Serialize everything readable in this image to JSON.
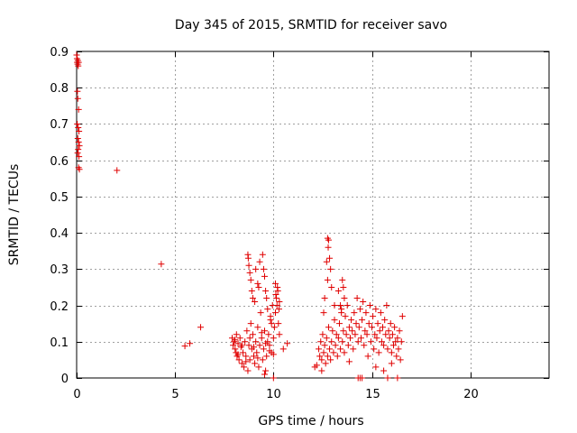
{
  "chart_data": {
    "type": "scatter",
    "title": "Day 345 of 2015, SRMTID for receiver savo",
    "xlabel": "GPS time / hours",
    "ylabel": "SRMTID / TECUs",
    "xlim": [
      0,
      24
    ],
    "ylim": [
      0,
      0.9
    ],
    "x_ticks": [
      0,
      5,
      10,
      15,
      20
    ],
    "x_tick_labels": [
      "0",
      "5",
      "10",
      "15",
      "20"
    ],
    "y_ticks": [
      0,
      0.1,
      0.2,
      0.3,
      0.4,
      0.5,
      0.6,
      0.7,
      0.8,
      0.9
    ],
    "y_tick_labels": [
      "0",
      "0.1",
      "0.2",
      "0.3",
      "0.4",
      "0.5",
      "0.6",
      "0.7",
      "0.8",
      "0.9"
    ],
    "grid": true,
    "marker": "plus",
    "color": "#e00000",
    "series": [
      {
        "name": "SRMTID",
        "points": [
          [
            0.0,
            0.89
          ],
          [
            0.02,
            0.88
          ],
          [
            0.03,
            0.87
          ],
          [
            0.05,
            0.865
          ],
          [
            0.06,
            0.875
          ],
          [
            0.08,
            0.86
          ],
          [
            0.1,
            0.87
          ],
          [
            0.04,
            0.79
          ],
          [
            0.06,
            0.77
          ],
          [
            0.1,
            0.74
          ],
          [
            0.03,
            0.7
          ],
          [
            0.08,
            0.69
          ],
          [
            0.12,
            0.68
          ],
          [
            0.06,
            0.66
          ],
          [
            0.1,
            0.65
          ],
          [
            0.14,
            0.64
          ],
          [
            0.08,
            0.63
          ],
          [
            0.12,
            0.61
          ],
          [
            0.05,
            0.62
          ],
          [
            0.1,
            0.58
          ],
          [
            0.14,
            0.575
          ],
          [
            2.05,
            0.572
          ],
          [
            4.3,
            0.314
          ],
          [
            5.5,
            0.088
          ],
          [
            5.75,
            0.095
          ],
          [
            6.3,
            0.14
          ],
          [
            7.9,
            0.11
          ],
          [
            7.95,
            0.09
          ],
          [
            8.0,
            0.1
          ],
          [
            8.05,
            0.08
          ],
          [
            8.1,
            0.07
          ],
          [
            8.12,
            0.12
          ],
          [
            8.15,
            0.06
          ],
          [
            8.2,
            0.095
          ],
          [
            8.25,
            0.05
          ],
          [
            8.3,
            0.11
          ],
          [
            8.35,
            0.085
          ],
          [
            8.4,
            0.04
          ],
          [
            8.45,
            0.07
          ],
          [
            8.5,
            0.03
          ],
          [
            8.55,
            0.1
          ],
          [
            8.6,
            0.06
          ],
          [
            8.65,
            0.13
          ],
          [
            8.7,
            0.02
          ],
          [
            8.75,
            0.09
          ],
          [
            8.8,
            0.05
          ],
          [
            8.85,
            0.15
          ],
          [
            8.9,
            0.08
          ],
          [
            8.95,
            0.12
          ],
          [
            9.0,
            0.06
          ],
          [
            9.05,
            0.04
          ],
          [
            9.1,
            0.1
          ],
          [
            9.15,
            0.07
          ],
          [
            9.2,
            0.14
          ],
          [
            9.25,
            0.03
          ],
          [
            9.3,
            0.09
          ],
          [
            9.35,
            0.18
          ],
          [
            9.4,
            0.11
          ],
          [
            9.45,
            0.05
          ],
          [
            9.5,
            0.08
          ],
          [
            9.55,
            0.13
          ],
          [
            9.6,
            0.02
          ],
          [
            9.65,
            0.06
          ],
          [
            9.7,
            0.1
          ],
          [
            9.75,
            0.12
          ],
          [
            9.8,
            0.09
          ],
          [
            9.85,
            0.16
          ],
          [
            9.9,
            0.07
          ],
          [
            9.95,
            0.2
          ],
          [
            10.0,
            0.11
          ],
          [
            10.05,
            0.14
          ],
          [
            10.1,
            0.18
          ],
          [
            10.15,
            0.22
          ],
          [
            10.2,
            0.25
          ],
          [
            10.25,
            0.15
          ],
          [
            10.3,
            0.12
          ],
          [
            8.05,
            0.105
          ],
          [
            8.2,
            0.065
          ],
          [
            8.4,
            0.09
          ],
          [
            8.6,
            0.045
          ],
          [
            8.8,
            0.11
          ],
          [
            9.0,
            0.085
          ],
          [
            9.2,
            0.055
          ],
          [
            9.4,
            0.125
          ],
          [
            9.6,
            0.095
          ],
          [
            9.8,
            0.075
          ],
          [
            10.0,
            0.065
          ],
          [
            9.1,
            0.3
          ],
          [
            9.3,
            0.32
          ],
          [
            8.7,
            0.34
          ],
          [
            8.72,
            0.33
          ],
          [
            8.75,
            0.31
          ],
          [
            8.8,
            0.29
          ],
          [
            8.85,
            0.27
          ],
          [
            9.45,
            0.34
          ],
          [
            9.5,
            0.3
          ],
          [
            9.55,
            0.28
          ],
          [
            9.2,
            0.26
          ],
          [
            9.25,
            0.25
          ],
          [
            8.9,
            0.24
          ],
          [
            8.95,
            0.22
          ],
          [
            9.05,
            0.21
          ],
          [
            9.6,
            0.24
          ],
          [
            9.65,
            0.22
          ],
          [
            9.7,
            0.19
          ],
          [
            10.1,
            0.26
          ],
          [
            10.12,
            0.23
          ],
          [
            10.18,
            0.2
          ],
          [
            10.22,
            0.24
          ],
          [
            10.28,
            0.19
          ],
          [
            10.3,
            0.21
          ],
          [
            9.85,
            0.17
          ],
          [
            9.9,
            0.15
          ],
          [
            10.5,
            0.08
          ],
          [
            10.7,
            0.095
          ],
          [
            10.0,
            0.0
          ],
          [
            9.55,
            0.01
          ],
          [
            12.2,
            0.035
          ],
          [
            12.3,
            0.08
          ],
          [
            12.35,
            0.06
          ],
          [
            12.4,
            0.1
          ],
          [
            12.45,
            0.05
          ],
          [
            12.5,
            0.12
          ],
          [
            12.55,
            0.07
          ],
          [
            12.6,
            0.09
          ],
          [
            12.65,
            0.04
          ],
          [
            12.7,
            0.11
          ],
          [
            12.75,
            0.06
          ],
          [
            12.8,
            0.14
          ],
          [
            12.85,
            0.08
          ],
          [
            12.9,
            0.05
          ],
          [
            12.95,
            0.1
          ],
          [
            13.0,
            0.13
          ],
          [
            13.05,
            0.07
          ],
          [
            13.1,
            0.16
          ],
          [
            13.15,
            0.09
          ],
          [
            13.2,
            0.12
          ],
          [
            13.25,
            0.06
          ],
          [
            13.3,
            0.11
          ],
          [
            13.35,
            0.15
          ],
          [
            13.4,
            0.08
          ],
          [
            13.45,
            0.19
          ],
          [
            13.5,
            0.1
          ],
          [
            13.55,
            0.13
          ],
          [
            13.6,
            0.07
          ],
          [
            13.65,
            0.17
          ],
          [
            13.7,
            0.12
          ],
          [
            13.75,
            0.2
          ],
          [
            13.8,
            0.09
          ],
          [
            13.85,
            0.14
          ],
          [
            13.9,
            0.11
          ],
          [
            13.95,
            0.16
          ],
          [
            14.0,
            0.13
          ],
          [
            14.05,
            0.08
          ],
          [
            14.1,
            0.18
          ],
          [
            14.15,
            0.12
          ],
          [
            14.2,
            0.15
          ],
          [
            14.25,
            0.22
          ],
          [
            14.3,
            0.1
          ],
          [
            14.35,
            0.14
          ],
          [
            14.4,
            0.19
          ],
          [
            14.45,
            0.11
          ],
          [
            14.5,
            0.16
          ],
          [
            14.55,
            0.21
          ],
          [
            14.6,
            0.09
          ],
          [
            14.65,
            0.13
          ],
          [
            14.7,
            0.18
          ],
          [
            14.75,
            0.12
          ],
          [
            14.8,
            0.06
          ],
          [
            14.85,
            0.15
          ],
          [
            14.9,
            0.2
          ],
          [
            14.95,
            0.1
          ],
          [
            15.0,
            0.14
          ],
          [
            15.05,
            0.17
          ],
          [
            15.1,
            0.08
          ],
          [
            15.15,
            0.12
          ],
          [
            15.2,
            0.19
          ],
          [
            15.25,
            0.11
          ],
          [
            15.3,
            0.15
          ],
          [
            15.35,
            0.07
          ],
          [
            15.4,
            0.13
          ],
          [
            15.45,
            0.18
          ],
          [
            15.5,
            0.1
          ],
          [
            15.55,
            0.14
          ],
          [
            15.6,
            0.09
          ],
          [
            15.65,
            0.16
          ],
          [
            15.7,
            0.12
          ],
          [
            15.75,
            0.2
          ],
          [
            15.8,
            0.08
          ],
          [
            15.85,
            0.13
          ],
          [
            15.9,
            0.11
          ],
          [
            15.95,
            0.15
          ],
          [
            16.0,
            0.07
          ],
          [
            16.05,
            0.12
          ],
          [
            16.1,
            0.09
          ],
          [
            16.15,
            0.14
          ],
          [
            16.2,
            0.1
          ],
          [
            16.25,
            0.06
          ],
          [
            16.3,
            0.11
          ],
          [
            16.35,
            0.08
          ],
          [
            16.4,
            0.13
          ],
          [
            16.45,
            0.05
          ],
          [
            16.5,
            0.1
          ],
          [
            16.55,
            0.17
          ],
          [
            12.75,
            0.385
          ],
          [
            12.8,
            0.38
          ],
          [
            12.78,
            0.36
          ],
          [
            12.85,
            0.33
          ],
          [
            12.7,
            0.32
          ],
          [
            12.9,
            0.3
          ],
          [
            12.75,
            0.27
          ],
          [
            12.95,
            0.25
          ],
          [
            13.1,
            0.2
          ],
          [
            12.6,
            0.22
          ],
          [
            12.55,
            0.18
          ],
          [
            13.3,
            0.24
          ],
          [
            13.5,
            0.27
          ],
          [
            13.55,
            0.25
          ],
          [
            13.6,
            0.22
          ],
          [
            13.4,
            0.2
          ],
          [
            13.45,
            0.18
          ],
          [
            12.1,
            0.03
          ],
          [
            12.45,
            0.02
          ],
          [
            13.85,
            0.045
          ],
          [
            14.3,
            0.0
          ],
          [
            14.4,
            0.0
          ],
          [
            14.5,
            0.0
          ],
          [
            15.8,
            0.0
          ],
          [
            16.3,
            0.0
          ],
          [
            15.2,
            0.03
          ],
          [
            15.6,
            0.02
          ],
          [
            16.0,
            0.04
          ]
        ]
      }
    ]
  }
}
